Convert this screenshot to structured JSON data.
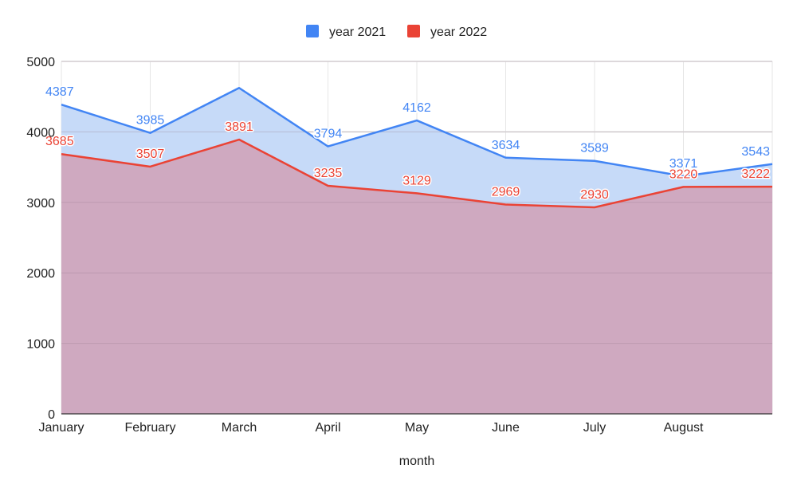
{
  "chart_data": {
    "type": "area",
    "title": "",
    "xlabel": "month",
    "ylabel": "",
    "categories": [
      "January",
      "February",
      "March",
      "April",
      "May",
      "June",
      "July",
      "August",
      ""
    ],
    "ylim": [
      0,
      5000
    ],
    "yticks": [
      "0",
      "1000",
      "2000",
      "3000",
      "4000",
      "5000"
    ],
    "grid": true,
    "legend_position": "top",
    "series": [
      {
        "name": "year 2021",
        "color": "#4285f4",
        "fill": "#c6daf8",
        "values": [
          4387,
          3985,
          4624,
          3794,
          4162,
          3634,
          3589,
          3371,
          3543
        ],
        "labels": [
          "4387",
          "3985",
          "",
          "3794",
          "4162",
          "3634",
          "3589",
          "3371",
          "3543"
        ]
      },
      {
        "name": "year 2022",
        "color": "#ea4335",
        "fill": "#cfa9c0",
        "values": [
          3685,
          3507,
          3891,
          3235,
          3129,
          2969,
          2930,
          3220,
          3222
        ],
        "labels": [
          "3685",
          "3507",
          "3891",
          "3235",
          "3129",
          "2969",
          "2930",
          "3220",
          "3222"
        ]
      }
    ]
  }
}
